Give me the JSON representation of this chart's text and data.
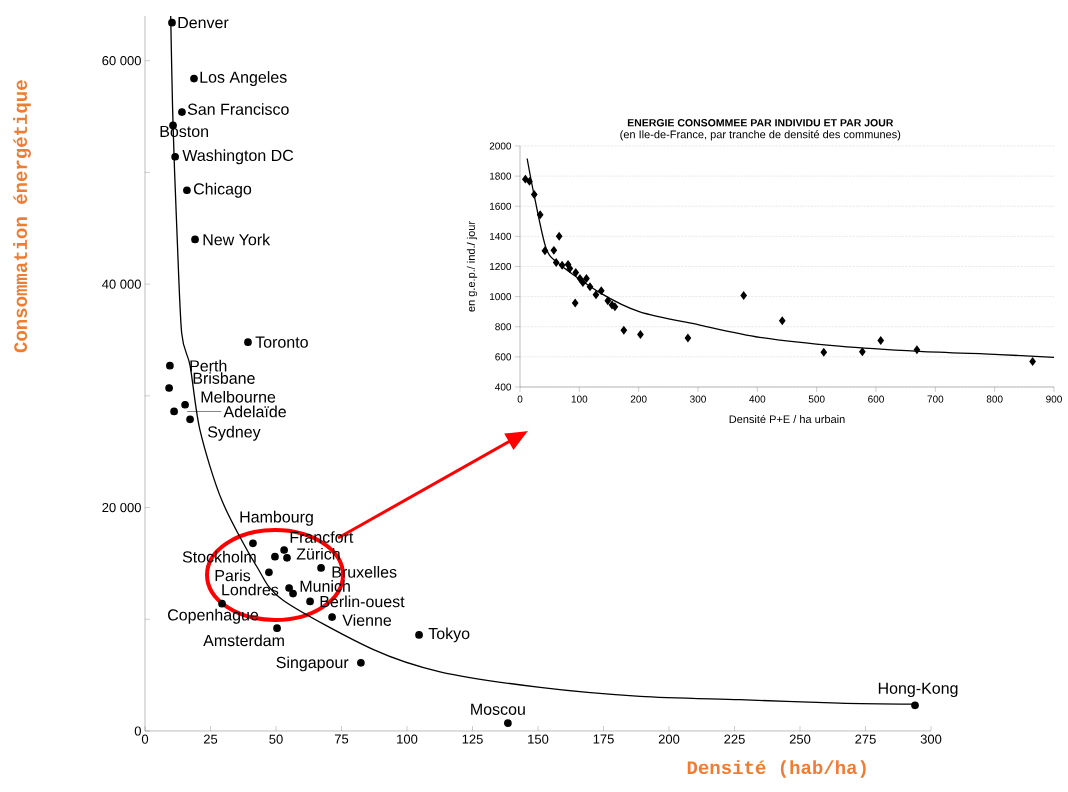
{
  "chart_data": [
    {
      "type": "scatter",
      "xlabel": "Densité (hab/ha)",
      "ylabel": "Consommation énergétique",
      "marker": "circle",
      "xlim": [
        0,
        300
      ],
      "ylim": [
        0,
        64000
      ],
      "xticks": [
        0,
        25,
        50,
        75,
        100,
        125,
        150,
        175,
        200,
        225,
        250,
        275,
        300
      ],
      "yticks": [
        0,
        {
          "value": 10000,
          "label": null
        },
        {
          "value": 20000,
          "label": "20 000"
        },
        {
          "value": 30000,
          "label": null
        },
        {
          "value": 40000,
          "label": "40 000"
        },
        {
          "value": 50000,
          "label": null
        },
        {
          "value": 60000,
          "label": "60 000"
        }
      ],
      "series": [
        {
          "color": "#000000",
          "x": [
            10.3,
            18.7,
            14.1,
            10.7,
            11.5,
            16.0,
            19.1,
            39.3,
            9.5,
            9.2,
            15.3,
            11.1,
            17.2,
            41.2,
            53.1,
            54.2,
            49.6,
            47.3,
            67.2,
            55.0,
            56.5,
            63.0,
            29.4,
            71.4,
            50.4,
            104.6,
            82.4,
            138.5,
            293.9
          ],
          "values": [
            63400,
            58400,
            55400,
            54200,
            51400,
            48400,
            44000,
            34800,
            32700,
            30700,
            29200,
            28600,
            27900,
            16800,
            16200,
            15500,
            15600,
            14200,
            14600,
            12800,
            12300,
            11600,
            11400,
            10200,
            9200,
            8600,
            6100,
            700,
            2300
          ]
        },
        {
          "type": "line",
          "color": "#000000",
          "marker": "none",
          "x": [
            9.8,
            10.5,
            11.3,
            12.2,
            14,
            17.2,
            21,
            29.4,
            42.7,
            52.7,
            87,
            112.6,
            150.8,
            189,
            227,
            265,
            293
          ],
          "values": [
            64000,
            56000,
            50000,
            44600,
            35600,
            32700,
            26900,
            20600,
            14700,
            11700,
            7300,
            5300,
            3900,
            3100,
            2800,
            2500,
            2400
          ]
        }
      ],
      "annotations": [
        {
          "text": "Denver",
          "x": 10.3,
          "y": 63400
        },
        {
          "text": "Los Angeles",
          "x": 18.7,
          "y": 58400
        },
        {
          "text": "San Francisco",
          "x": 14.1,
          "y": 55400
        },
        {
          "text": "Boston",
          "x": 10.7,
          "y": 54200
        },
        {
          "text": "Washington DC",
          "x": 11.5,
          "y": 51400
        },
        {
          "text": "Chicago",
          "x": 16.0,
          "y": 48400
        },
        {
          "text": "New York",
          "x": 19.1,
          "y": 44000
        },
        {
          "text": "Toronto",
          "x": 39.3,
          "y": 34800
        },
        {
          "text": "Perth",
          "x": 9.5,
          "y": 32700
        },
        {
          "text": "Brisbane",
          "x": 9.2,
          "y": 30700
        },
        {
          "text": "Melbourne",
          "x": 15.3,
          "y": 29200
        },
        "Adelaïde",
        {
          "text": "Sydney",
          "x": 17.2,
          "y": 27900
        },
        {
          "text": "Hambourg",
          "x": 41.2,
          "y": 16800
        },
        {
          "text": "Francfort",
          "x": 53.1,
          "y": 16200
        },
        {
          "text": "Zürich",
          "x": 54.2,
          "y": 15500
        },
        {
          "text": "Stockholm",
          "x": 49.6,
          "y": 15600
        },
        {
          "text": "Paris",
          "x": 47.3,
          "y": 14200
        },
        {
          "text": "Bruxelles",
          "x": 67.2,
          "y": 14600
        },
        {
          "text": "Munich",
          "x": 55.0,
          "y": 12800
        },
        {
          "text": "Londres",
          "x": 56.5,
          "y": 12300
        },
        {
          "text": "Berlin-ouest",
          "x": 63.0,
          "y": 11600
        },
        {
          "text": "Copenhague",
          "x": 29.4,
          "y": 11400
        },
        {
          "text": "Vienne",
          "x": 71.4,
          "y": 10200
        },
        {
          "text": "Amsterdam",
          "x": 50.4,
          "y": 9200
        },
        {
          "text": "Tokyo",
          "x": 104.6,
          "y": 8600
        },
        {
          "text": "Singapour",
          "x": 82.4,
          "y": 6100
        },
        {
          "text": "Moscou",
          "x": 138.5,
          "y": 700
        },
        {
          "text": "Hong-Kong",
          "x": 293.9,
          "y": 2300
        }
      ]
    },
    {
      "type": "scatter",
      "title": "ENERGIE CONSOMMEE PAR INDIVIDU ET PAR JOUR",
      "subtitle": "(en Ile-de-France, par tranche de densité des communes)",
      "xlabel": "Densité P+E / ha urbain",
      "ylabel": "en g.e.p./ ind./ jour",
      "marker": "diamond",
      "grid": "y",
      "xlim": [
        0,
        900
      ],
      "ylim": [
        400,
        2000
      ],
      "xticks": [
        0,
        100,
        200,
        300,
        400,
        500,
        600,
        700,
        800,
        900
      ],
      "yticks": [
        400,
        600,
        800,
        1000,
        1200,
        1400,
        1600,
        1800,
        2000
      ],
      "series": [
        {
          "color": "#000000",
          "x": [
            9,
            16,
            24,
            34,
            42,
            57,
            66,
            61,
            71,
            81,
            84,
            94,
            101,
            106,
            112,
            118,
            128,
            137,
            148,
            155,
            160,
            93,
            175,
            203,
            283,
            377,
            442,
            512,
            577,
            608,
            669,
            864
          ],
          "values": [
            1780,
            1765,
            1678,
            1544,
            1305,
            1307,
            1401,
            1227,
            1208,
            1213,
            1187,
            1160,
            1120,
            1093,
            1120,
            1066,
            1012,
            1039,
            972,
            945,
            932,
            958,
            776,
            749,
            725,
            1007,
            840,
            631,
            634,
            709,
            647,
            569
          ]
        },
        {
          "type": "line",
          "color": "#000000",
          "marker": "none",
          "x": [
            12,
            24,
            44,
            67,
            135,
            202,
            303,
            404,
            538,
            673,
            808,
            900
          ],
          "values": [
            1917,
            1670,
            1321,
            1213,
            1025,
            899,
            811,
            730,
            671,
            636,
            615,
            596
          ]
        }
      ]
    }
  ]
}
